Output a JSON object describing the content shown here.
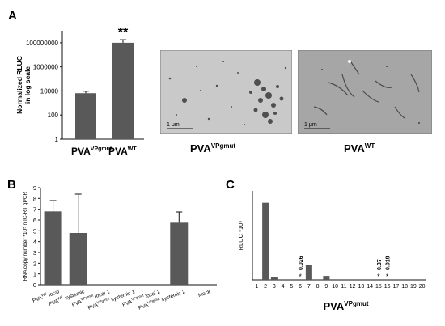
{
  "panels": {
    "a": {
      "letter": "A"
    },
    "b": {
      "letter": "B"
    },
    "c": {
      "letter": "C"
    }
  },
  "micrographs": {
    "left": {
      "caption_main": "PVA",
      "caption_sup": "VPgmut",
      "scale_bar": "1 μm"
    },
    "right": {
      "caption_main": "PVA",
      "caption_sup": "WT",
      "scale_bar": "1 μm"
    }
  },
  "colors": {
    "bar": "#595959",
    "axis": "#111111",
    "micrograph_left": "#c9c9c9",
    "micrograph_right": "#a6a6a6"
  },
  "chart_data": [
    {
      "type": "bar",
      "panel": "A",
      "ylabel_lines": [
        "Normalized RLUC",
        "in log scale"
      ],
      "yscale": "log",
      "ylim": [
        1,
        1000000000
      ],
      "yticks": [
        1,
        100,
        10000,
        1000000,
        100000000
      ],
      "ytick_labels": [
        "1",
        "100",
        "10000",
        "1000000",
        "100000000"
      ],
      "categories": [
        {
          "main": "PVA",
          "sup": "VPgmut"
        },
        {
          "main": "PVA",
          "sup": "WT"
        }
      ],
      "values": [
        6500,
        100000000
      ],
      "error_upper": [
        9500,
        180000000
      ],
      "annotations": [
        "",
        "**"
      ]
    },
    {
      "type": "bar",
      "panel": "B",
      "ylabel": "RNA copy number *10⁵ n IC-RT qPCR",
      "ylim": [
        0,
        9
      ],
      "yticks": [
        0,
        1,
        2,
        3,
        4,
        5,
        6,
        7,
        8,
        9
      ],
      "categories": [
        {
          "main": "PVA",
          "sup": "WT",
          "suffix": " local"
        },
        {
          "main": "PVA",
          "sup": "WT",
          "suffix": " systemic"
        },
        {
          "main": "PVA",
          "sup": "VPgmut",
          "suffix": " local 1"
        },
        {
          "main": "PVA",
          "sup": "VPgmut",
          "suffix": " systemic 1"
        },
        {
          "main": "PVA",
          "sup": "VPgmut",
          "suffix": " local 2"
        },
        {
          "main": "PVA",
          "sup": "VPgmut",
          "suffix": " systemic 2"
        },
        {
          "main": "Mock",
          "sup": "",
          "suffix": ""
        }
      ],
      "values": [
        6.8,
        4.8,
        0,
        0,
        0,
        5.75,
        0
      ],
      "error": [
        1.0,
        3.6,
        0,
        0,
        0,
        1.0,
        0
      ]
    },
    {
      "type": "bar",
      "panel": "C",
      "ylabel": "RLUC *10⁶",
      "xlabel_main": "PVA",
      "xlabel_sup": "VPgmut",
      "ylim": [
        0,
        45
      ],
      "categories": [
        "1",
        "2",
        "3",
        "4",
        "5",
        "6",
        "7",
        "8",
        "9",
        "10",
        "11",
        "12",
        "13",
        "14",
        "15",
        "16",
        "17",
        "18",
        "19",
        "20"
      ],
      "values": [
        0,
        39,
        1.5,
        0,
        0,
        0.026,
        7.5,
        0,
        2,
        0,
        0,
        0,
        0,
        0,
        0.37,
        0.019,
        0,
        0,
        0,
        0
      ],
      "annotations": [
        {
          "category": "6",
          "star": "*",
          "label": "0.026"
        },
        {
          "category": "15",
          "star": "*",
          "label": "0.37"
        },
        {
          "category": "16",
          "star": "*",
          "label": "0.019"
        }
      ]
    }
  ]
}
